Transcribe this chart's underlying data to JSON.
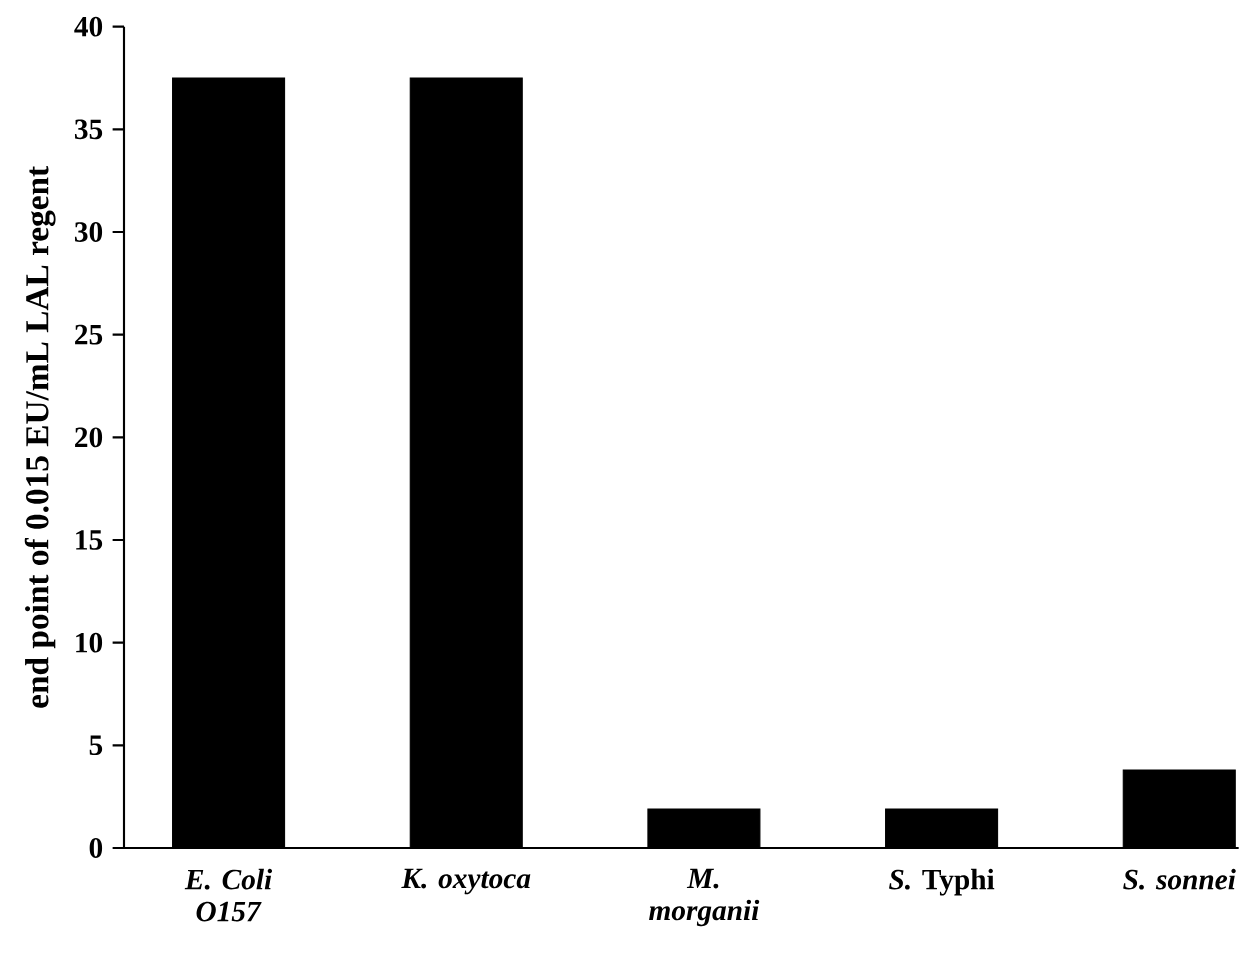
{
  "chart_data": {
    "type": "bar",
    "ylabel": "end point of 0.015 EU/mL LAL regent",
    "categories": [
      "*E. Coli O157*",
      "*K. oxytoca*",
      "*M. morganii*",
      "*S.* Typhi",
      "*S. sonnei*"
    ],
    "values": [
      37.5,
      37.5,
      1.9,
      1.9,
      3.8
    ],
    "color": "#000000",
    "ylim": [
      0,
      40
    ],
    "yticks": [
      0,
      5,
      10,
      15,
      20,
      25,
      30,
      35,
      40
    ],
    "grid": false
  }
}
